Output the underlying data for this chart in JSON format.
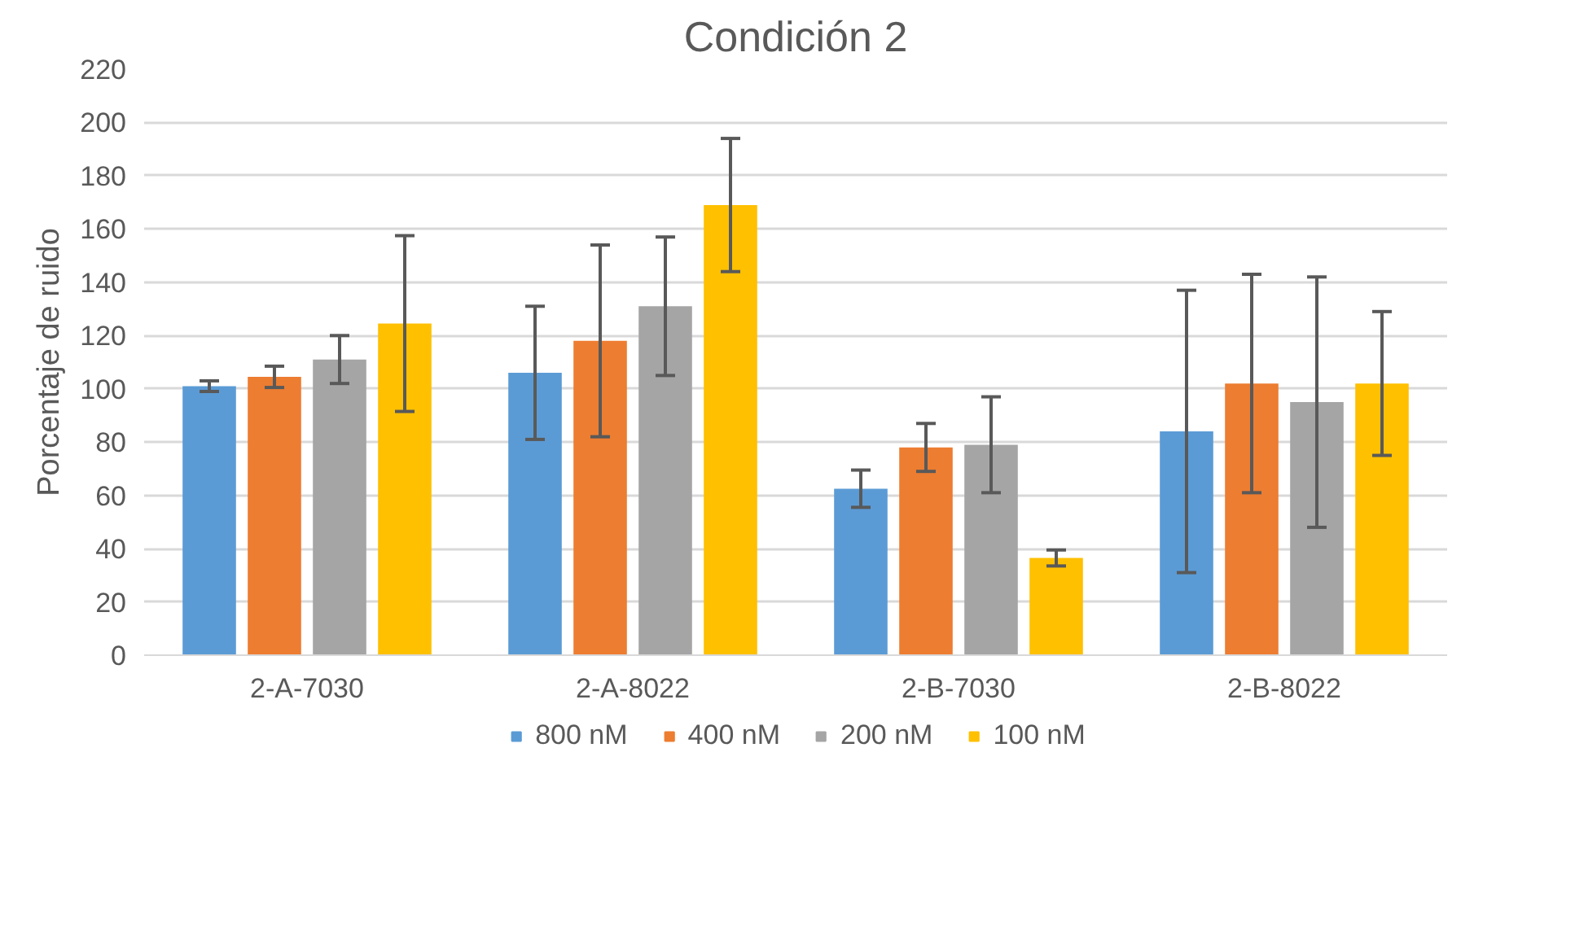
{
  "chart_data": {
    "type": "bar",
    "title": "Condición 2",
    "ylabel": "Porcentaje de ruido",
    "categories": [
      "2-A-7030",
      "2-A-8022",
      "2-B-7030",
      "2-B-8022"
    ],
    "series": [
      {
        "name": "800 nM",
        "color": "#5b9bd5",
        "values": [
          101,
          106,
          62.5,
          84
        ],
        "errors": [
          2,
          25,
          7,
          53
        ]
      },
      {
        "name": "400 nM",
        "color": "#ed7d31",
        "values": [
          104.5,
          118,
          78,
          102
        ],
        "errors": [
          4,
          36,
          9,
          41
        ]
      },
      {
        "name": "200 nM",
        "color": "#a5a5a5",
        "values": [
          111,
          131,
          79,
          95
        ],
        "errors": [
          9,
          26,
          18,
          47
        ]
      },
      {
        "name": "100 nM",
        "color": "#ffc000",
        "values": [
          124.5,
          169,
          36.5,
          102
        ],
        "errors": [
          33,
          25,
          3,
          27
        ]
      }
    ],
    "ylim": [
      0,
      220
    ],
    "yticks": [
      0,
      20,
      40,
      60,
      80,
      100,
      120,
      140,
      160,
      180,
      200,
      220
    ],
    "grid": "y",
    "legend": "bottom"
  }
}
